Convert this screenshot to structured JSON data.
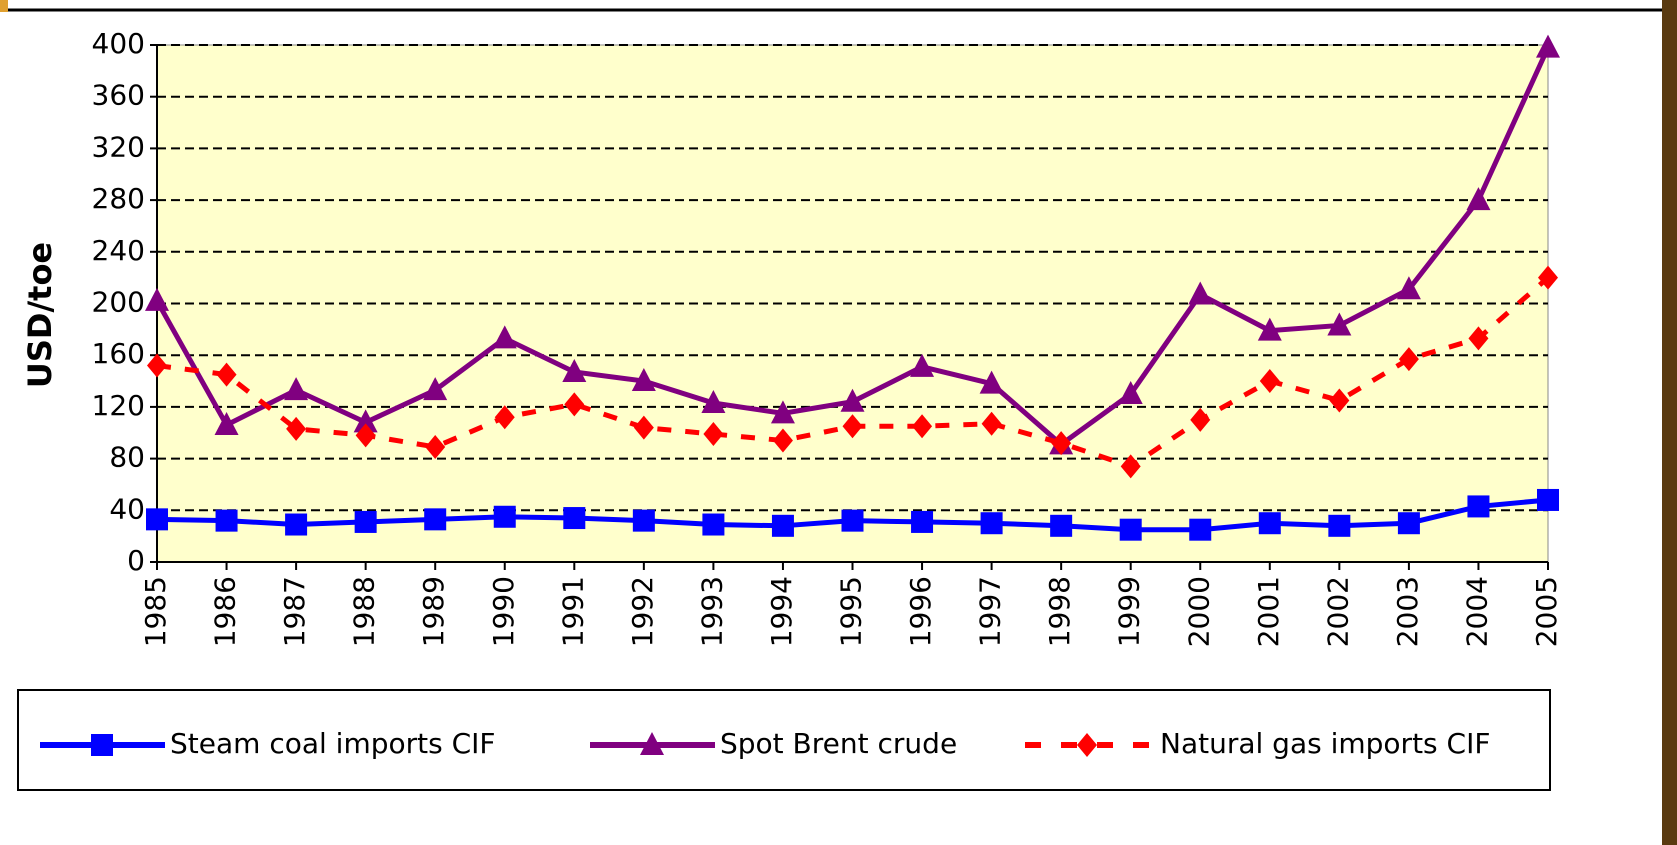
{
  "chart_data": {
    "type": "line",
    "y_label": "USD/toe",
    "categories": [
      "1985",
      "1986",
      "1987",
      "1988",
      "1989",
      "1990",
      "1991",
      "1992",
      "1993",
      "1994",
      "1995",
      "1996",
      "1997",
      "1998",
      "1999",
      "2000",
      "2001",
      "2002",
      "2003",
      "2004",
      "2005"
    ],
    "series": [
      {
        "name": "Steam coal imports CIF",
        "color": "#0000ff",
        "marker": "square",
        "dash": false,
        "values": [
          33,
          32,
          29,
          31,
          33,
          35,
          34,
          32,
          29,
          28,
          32,
          31,
          30,
          28,
          25,
          25,
          30,
          28,
          30,
          43,
          48
        ]
      },
      {
        "name": "Spot Brent crude",
        "color": "#800080",
        "marker": "triangle",
        "dash": false,
        "values": [
          202,
          106,
          133,
          108,
          133,
          173,
          147,
          140,
          123,
          115,
          124,
          151,
          138,
          91,
          130,
          207,
          179,
          183,
          211,
          280,
          398
        ]
      },
      {
        "name": "Natural gas imports CIF",
        "color": "#ff0000",
        "marker": "diamond",
        "dash": true,
        "values": [
          152,
          145,
          103,
          98,
          89,
          112,
          122,
          104,
          99,
          94,
          105,
          105,
          107,
          92,
          74,
          110,
          140,
          125,
          157,
          173,
          220
        ]
      }
    ],
    "ylim": [
      0,
      400
    ],
    "yticks": [
      0,
      40,
      80,
      120,
      160,
      200,
      240,
      280,
      320,
      360,
      400
    ],
    "grid": true,
    "plot_background": "#ffffcc"
  }
}
